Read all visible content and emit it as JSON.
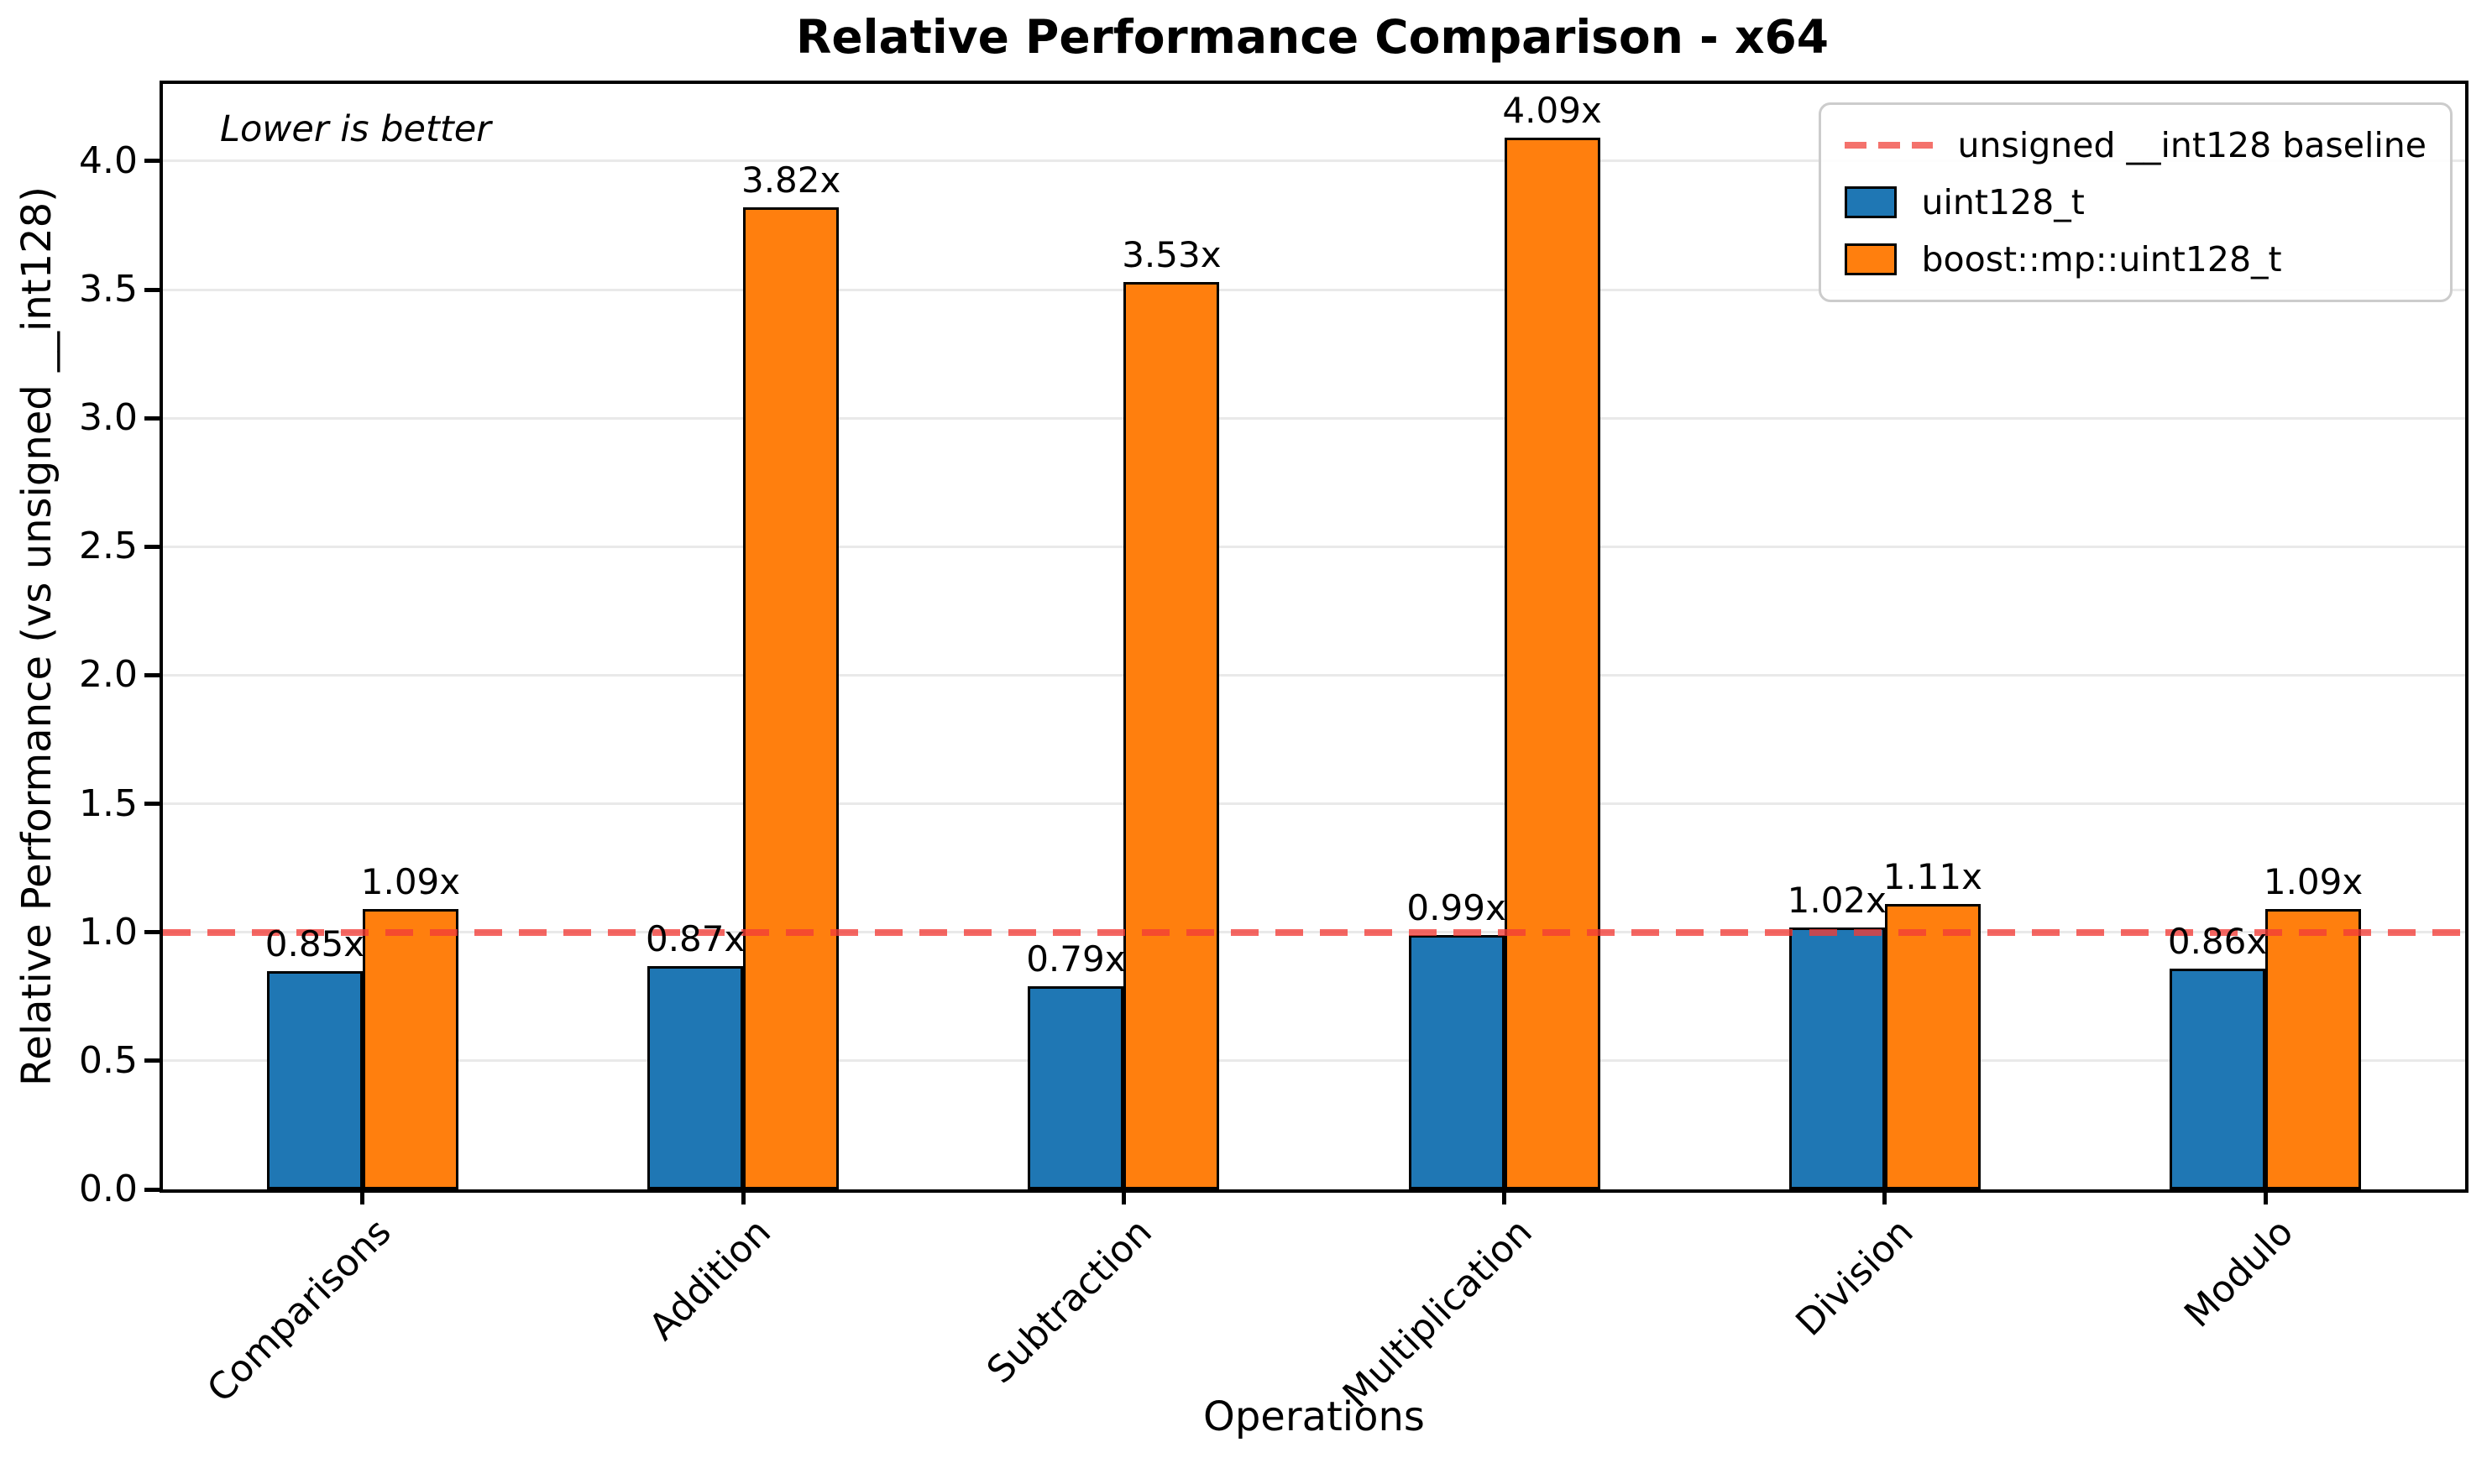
{
  "chart_data": {
    "type": "bar",
    "title": "Relative Performance Comparison - x64",
    "xlabel": "Operations",
    "ylabel": "Relative Performance (vs unsigned __int128)",
    "annotation": "Lower is better",
    "categories": [
      "Comparisons",
      "Addition",
      "Subtraction",
      "Multiplication",
      "Division",
      "Modulo"
    ],
    "series": [
      {
        "name": "uint128_t",
        "color": "#1f77b4",
        "values": [
          0.85,
          0.87,
          0.79,
          0.99,
          1.02,
          0.86
        ],
        "labels": [
          "0.85x",
          "0.87x",
          "0.79x",
          "0.99x",
          "1.02x",
          "0.86x"
        ]
      },
      {
        "name": "boost::mp::uint128_t",
        "color": "#ff7f0e",
        "values": [
          1.09,
          3.82,
          3.53,
          4.09,
          1.11,
          1.09
        ],
        "labels": [
          "1.09x",
          "3.82x",
          "3.53x",
          "4.09x",
          "1.11x",
          "1.09x"
        ]
      }
    ],
    "baseline": {
      "value": 1.0,
      "label": "unsigned __int128 baseline",
      "color": "rgba(242,60,55,0.78)",
      "legend_color": "#f4726c"
    },
    "yticks": [
      0.0,
      0.5,
      1.0,
      1.5,
      2.0,
      2.5,
      3.0,
      3.5,
      4.0
    ],
    "ytick_labels": [
      "0.0",
      "0.5",
      "1.0",
      "1.5",
      "2.0",
      "2.5",
      "3.0",
      "3.5",
      "4.0"
    ],
    "ylim": [
      0,
      4.3
    ],
    "grid": "horizontal",
    "legend_position": "upper right",
    "colors": {
      "grid": "#e9e9e9",
      "spine": "#000000",
      "bar_edge": "#000000",
      "background": "#ffffff"
    }
  }
}
